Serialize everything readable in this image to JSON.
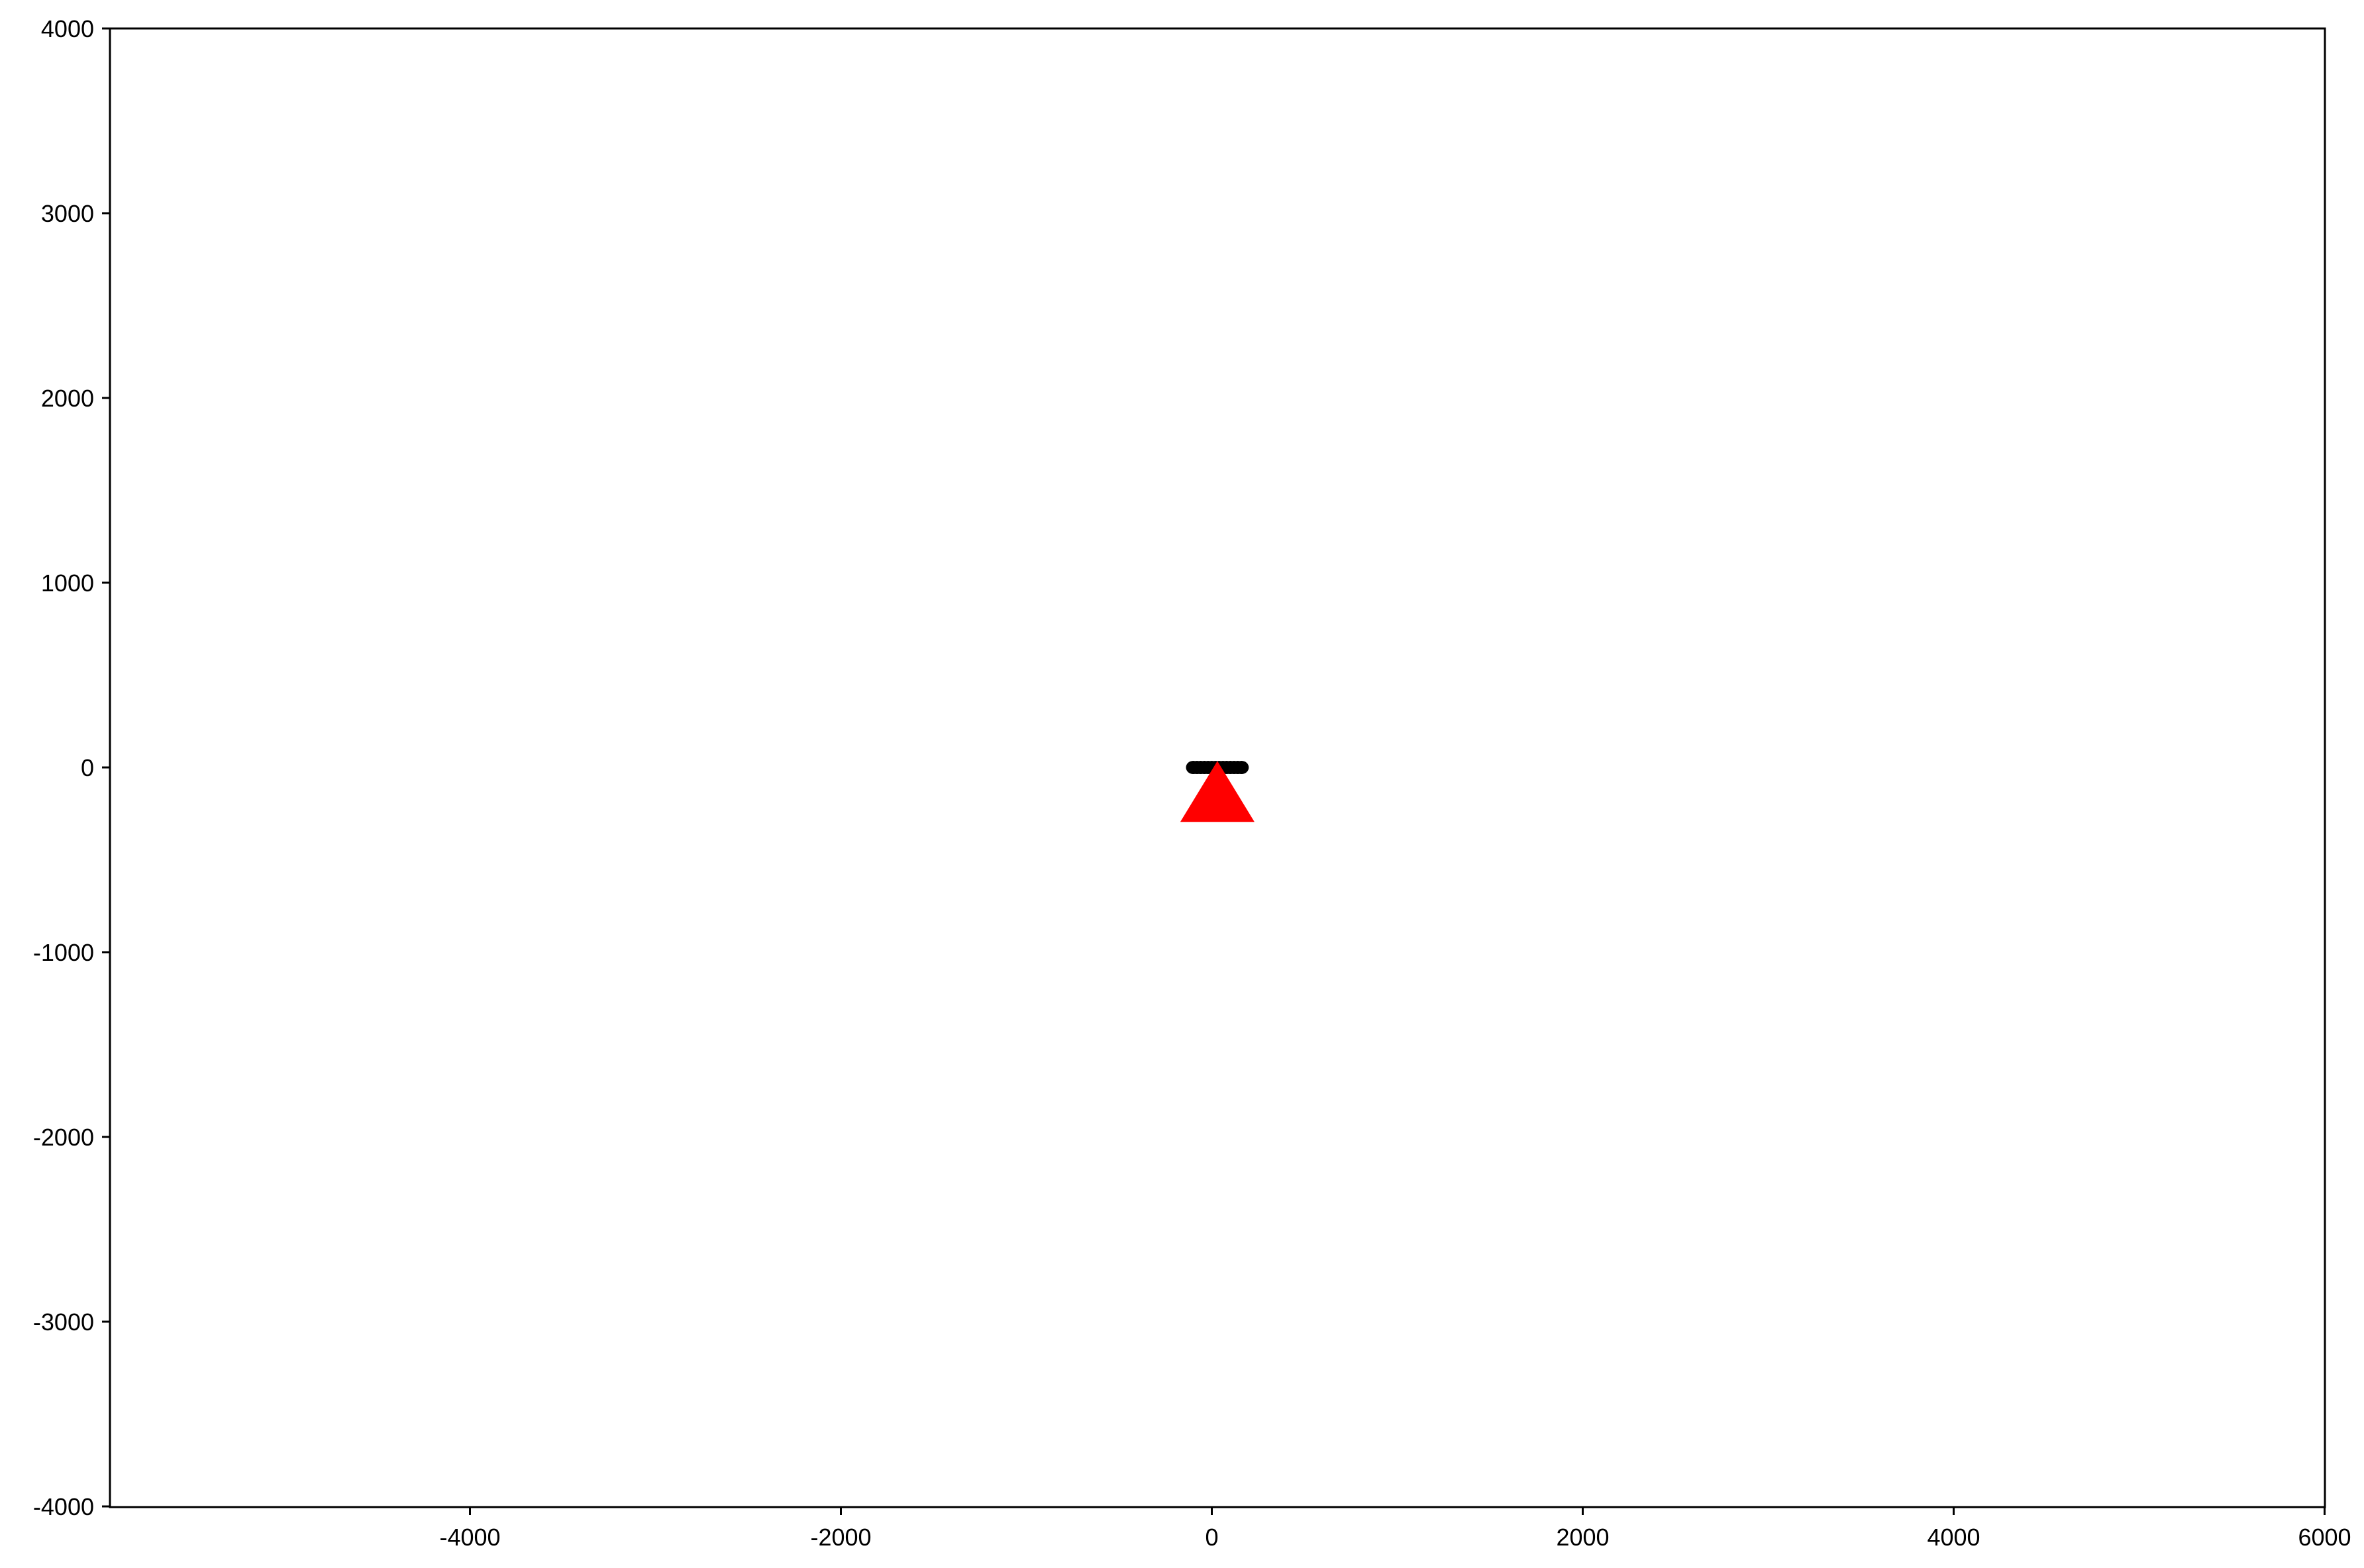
{
  "chart_data": {
    "type": "scatter",
    "title": "",
    "xlabel": "",
    "ylabel": "",
    "xlim": [
      -6000,
      6000
    ],
    "ylim": [
      -4000,
      4000
    ],
    "grid": false,
    "x_ticks": [
      -4000,
      -2000,
      0,
      2000,
      4000,
      6000
    ],
    "x_tick_labels": [
      "-4000",
      "-2000",
      "0",
      "2000",
      "4000",
      "6000"
    ],
    "y_ticks": [
      -4000,
      -3000,
      -2000,
      -1000,
      0,
      1000,
      2000,
      3000,
      4000
    ],
    "y_tick_labels": [
      "-4000",
      "-3000",
      "-2000",
      "-1000",
      "0",
      "1000",
      "2000",
      "3000",
      "4000"
    ],
    "series": [
      {
        "marker": "circle",
        "color": "#000000",
        "points": [
          {
            "x": -100,
            "y": 0
          },
          {
            "x": -80,
            "y": 0
          },
          {
            "x": -60,
            "y": 0
          },
          {
            "x": -40,
            "y": 0
          },
          {
            "x": -20,
            "y": 0
          },
          {
            "x": 0,
            "y": 0
          },
          {
            "x": 20,
            "y": 0
          },
          {
            "x": 40,
            "y": 0
          },
          {
            "x": 60,
            "y": 0
          },
          {
            "x": 80,
            "y": 0
          },
          {
            "x": 100,
            "y": 0
          },
          {
            "x": 120,
            "y": 0
          },
          {
            "x": 140,
            "y": 0
          },
          {
            "x": 160,
            "y": 0
          }
        ]
      },
      {
        "marker": "triangle",
        "color": "#ff0000",
        "points": [
          {
            "x": 30,
            "y": -130
          }
        ]
      }
    ]
  }
}
